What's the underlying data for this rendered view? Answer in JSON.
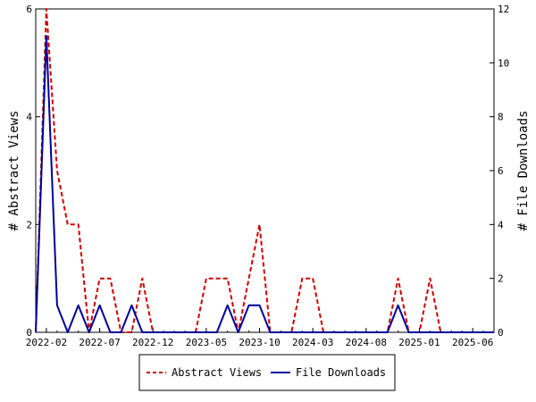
{
  "chart_data": {
    "type": "line",
    "x": [
      "2022-01",
      "2022-02",
      "2022-03",
      "2022-04",
      "2022-05",
      "2022-06",
      "2022-07",
      "2022-08",
      "2022-09",
      "2022-10",
      "2022-11",
      "2022-12",
      "2023-01",
      "2023-02",
      "2023-03",
      "2023-04",
      "2023-05",
      "2023-06",
      "2023-07",
      "2023-08",
      "2023-09",
      "2023-10",
      "2023-11",
      "2023-12",
      "2024-01",
      "2024-02",
      "2024-03",
      "2024-04",
      "2024-05",
      "2024-06",
      "2024-07",
      "2024-08",
      "2024-09",
      "2024-10",
      "2024-11",
      "2024-12",
      "2025-01",
      "2025-02",
      "2025-03",
      "2025-04",
      "2025-05",
      "2025-06",
      "2025-07",
      "2025-08"
    ],
    "x_tick_labels": [
      "2022-02",
      "2022-07",
      "2022-12",
      "2023-05",
      "2023-10",
      "2024-03",
      "2024-08",
      "2025-01",
      "2025-06"
    ],
    "series": [
      {
        "name": "Abstract Views",
        "axis": "left",
        "color": "#cc0000",
        "style": "dashed",
        "values": [
          0,
          6,
          3,
          2,
          2,
          0,
          1,
          1,
          0,
          0,
          1,
          0,
          0,
          0,
          0,
          0,
          1,
          1,
          1,
          0,
          1,
          2,
          0,
          0,
          0,
          1,
          1,
          0,
          0,
          0,
          0,
          0,
          0,
          0,
          1,
          0,
          0,
          1,
          0,
          0,
          0,
          0,
          0,
          0
        ]
      },
      {
        "name": "File Downloads",
        "axis": "right",
        "color": "#000099",
        "style": "solid",
        "values": [
          0,
          11,
          1,
          0,
          1,
          0,
          1,
          0,
          0,
          1,
          0,
          0,
          0,
          0,
          0,
          0,
          0,
          0,
          1,
          0,
          1,
          1,
          0,
          0,
          0,
          0,
          0,
          0,
          0,
          0,
          0,
          0,
          0,
          0,
          1,
          0,
          0,
          0,
          0,
          0,
          0,
          0,
          0,
          0
        ]
      }
    ],
    "ylabel": "# Abstract Views",
    "y2label": "# File Downloads",
    "ylim": [
      0,
      6
    ],
    "y2lim": [
      0,
      12
    ],
    "yticks": [
      "0",
      "2",
      "4",
      "6"
    ],
    "y2ticks": [
      "0",
      "2",
      "4",
      "6",
      "8",
      "10",
      "12"
    ],
    "legend_placement": "bottom-center",
    "grid": false
  }
}
